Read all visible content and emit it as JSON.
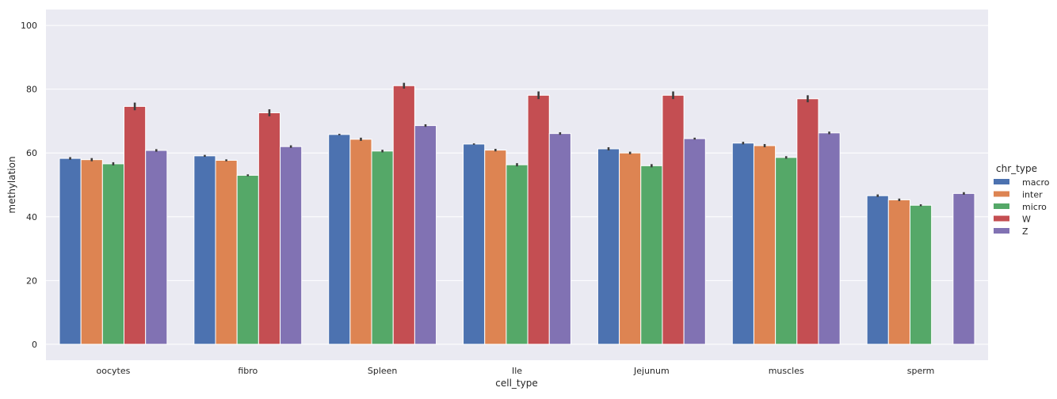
{
  "chart_data": {
    "type": "bar",
    "xlabel": "cell_type",
    "ylabel": "methylation",
    "ylim": [
      -5,
      105
    ],
    "yticks": [
      0,
      20,
      40,
      60,
      80,
      100
    ],
    "grid": true,
    "legend": {
      "title": "chr_type",
      "placement": "right"
    },
    "categories": [
      "oocytes",
      "fibro",
      "Spleen",
      "Ile",
      "Jejunum",
      "muscles",
      "sperm"
    ],
    "series": [
      {
        "name": "macro",
        "color": "#4c72b0",
        "values": [
          58.3,
          59.1,
          65.8,
          62.8,
          61.3,
          63.1,
          46.6
        ],
        "errors": [
          0.4,
          0.3,
          0.2,
          0.2,
          0.5,
          0.4,
          0.4
        ]
      },
      {
        "name": "inter",
        "color": "#dd8452",
        "values": [
          57.9,
          57.7,
          64.3,
          60.9,
          60.0,
          62.3,
          45.3
        ],
        "errors": [
          0.5,
          0.3,
          0.5,
          0.4,
          0.4,
          0.5,
          0.4
        ]
      },
      {
        "name": "micro",
        "color": "#55a868",
        "values": [
          56.6,
          53.0,
          60.6,
          56.3,
          56.0,
          58.6,
          43.6
        ],
        "errors": [
          0.5,
          0.3,
          0.4,
          0.5,
          0.5,
          0.4,
          0.3
        ]
      },
      {
        "name": "W",
        "color": "#c44e52",
        "values": [
          74.6,
          72.6,
          81.1,
          78.1,
          78.1,
          77.0,
          null
        ],
        "errors": [
          1.2,
          1.1,
          0.9,
          1.2,
          1.2,
          1.1,
          null
        ]
      },
      {
        "name": "Z",
        "color": "#8172b3",
        "values": [
          60.8,
          62.0,
          68.6,
          66.1,
          64.5,
          66.3,
          47.3
        ],
        "errors": [
          0.4,
          0.4,
          0.4,
          0.4,
          0.3,
          0.4,
          0.4
        ]
      }
    ]
  }
}
